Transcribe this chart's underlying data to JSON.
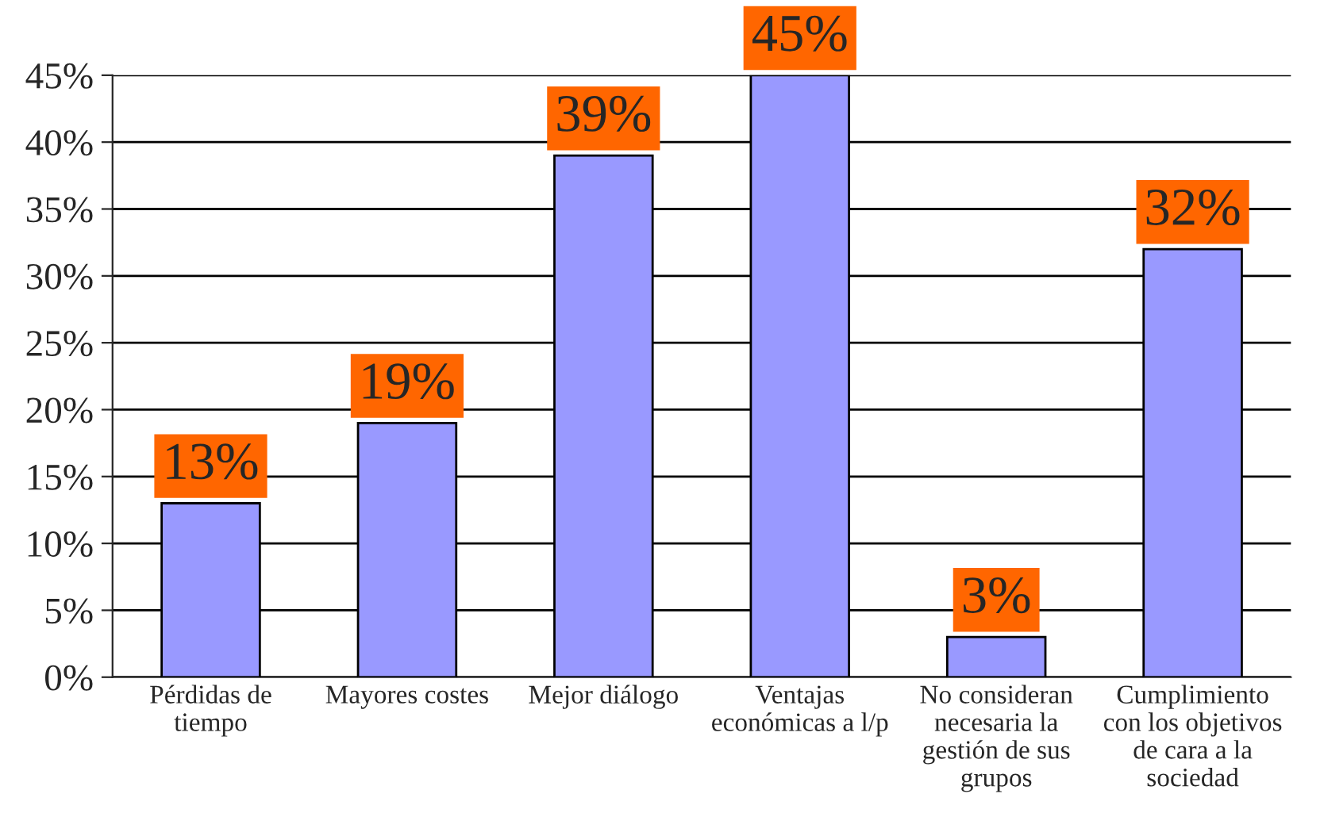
{
  "chart_data": {
    "type": "bar",
    "categories": [
      "Pérdidas de\ntiempo",
      "Mayores costes",
      "Mejor diálogo",
      "Ventajas\neconómicas a l/p",
      "No consideran\nnecesaria la\ngestión de sus\ngrupos",
      "Cumplimiento\ncon los objetivos\nde cara a la\nsociedad"
    ],
    "values": [
      13,
      19,
      39,
      45,
      3,
      32
    ],
    "value_labels": [
      "13%",
      "19%",
      "39%",
      "45%",
      "3%",
      "32%"
    ],
    "color": "#9999ff",
    "ylim": [
      0,
      45
    ],
    "yticks": [
      {
        "value": 0,
        "label": "0%"
      },
      {
        "value": 5,
        "label": "5%"
      },
      {
        "value": 10,
        "label": "10%"
      },
      {
        "value": 15,
        "label": "15%"
      },
      {
        "value": 20,
        "label": "20%"
      },
      {
        "value": 25,
        "label": "25%"
      },
      {
        "value": 30,
        "label": "30%"
      },
      {
        "value": 35,
        "label": "35%"
      },
      {
        "value": 40,
        "label": "40%"
      },
      {
        "value": 45,
        "label": "45%"
      }
    ],
    "grid": "y",
    "legend": false
  }
}
